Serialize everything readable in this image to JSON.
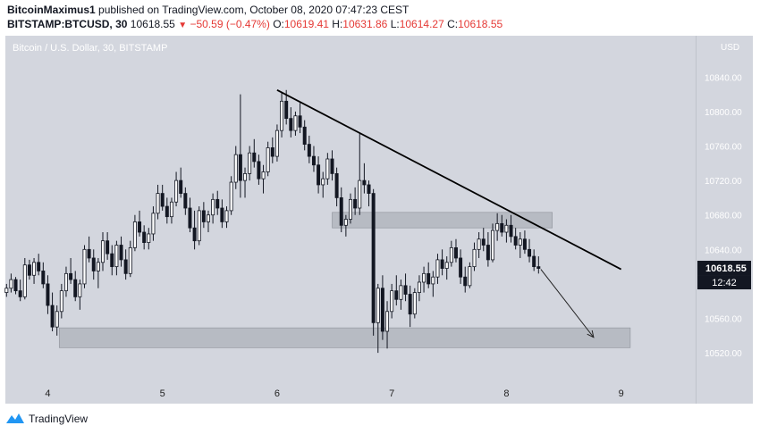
{
  "header": {
    "author": "BitcoinMaximus1",
    "published_text": "published on TradingView.com, October 08, 2020 07:47:23 CEST",
    "symbol": "BITSTAMP:BTCUSD, 30",
    "last": "10618.55",
    "change": "−50.59 (−0.47%)",
    "o_label": "O:",
    "o_val": "10619.41",
    "h_label": "H:",
    "h_val": "10631.86",
    "l_label": "L:",
    "l_val": "10614.27",
    "c_label": "C:",
    "c_val": "10618.55"
  },
  "chart_title": "Bitcoin / U.S. Dollar, 30, BITSTAMP",
  "footer": {
    "logo_text": "TradingView"
  },
  "colors": {
    "panel": "#d3d6de",
    "candle": "#131722",
    "zone": "#aeb2ba",
    "badge": "#131722"
  },
  "chart_data": {
    "type": "candlestick",
    "currency": "USD",
    "x": {
      "ticks": [
        "4",
        "5",
        "6",
        "7",
        "8",
        "9"
      ],
      "range_days": [
        3.63,
        9.65
      ]
    },
    "y": {
      "ticks": [
        "10520.00",
        "10560.00",
        "10600.00",
        "10640.00",
        "10680.00",
        "10720.00",
        "10760.00",
        "10800.00",
        "10840.00"
      ],
      "range": [
        10488,
        10888
      ]
    },
    "last_price_label": "10618.55",
    "countdown_label": "12:42",
    "ohlc": [
      [
        3.64,
        10590,
        10600,
        10585,
        10595
      ],
      [
        3.68,
        10595,
        10612,
        10590,
        10605
      ],
      [
        3.72,
        10605,
        10608,
        10588,
        10592
      ],
      [
        3.76,
        10592,
        10605,
        10580,
        10585
      ],
      [
        3.8,
        10585,
        10630,
        10582,
        10622
      ],
      [
        3.84,
        10622,
        10628,
        10605,
        10610
      ],
      [
        3.88,
        10610,
        10630,
        10600,
        10625
      ],
      [
        3.92,
        10625,
        10635,
        10610,
        10615
      ],
      [
        3.96,
        10615,
        10625,
        10595,
        10600
      ],
      [
        4.0,
        10600,
        10610,
        10565,
        10575
      ],
      [
        4.04,
        10575,
        10590,
        10545,
        10550
      ],
      [
        4.08,
        10550,
        10575,
        10540,
        10568
      ],
      [
        4.12,
        10568,
        10600,
        10560,
        10592
      ],
      [
        4.16,
        10592,
        10620,
        10585,
        10612
      ],
      [
        4.2,
        10612,
        10630,
        10600,
        10605
      ],
      [
        4.24,
        10605,
        10615,
        10580,
        10585
      ],
      [
        4.28,
        10585,
        10605,
        10570,
        10600
      ],
      [
        4.32,
        10600,
        10645,
        10595,
        10640
      ],
      [
        4.36,
        10640,
        10655,
        10625,
        10630
      ],
      [
        4.4,
        10630,
        10640,
        10605,
        10615
      ],
      [
        4.44,
        10615,
        10630,
        10595,
        10625
      ],
      [
        4.48,
        10625,
        10660,
        10615,
        10650
      ],
      [
        4.52,
        10650,
        10660,
        10628,
        10635
      ],
      [
        4.56,
        10635,
        10645,
        10610,
        10620
      ],
      [
        4.6,
        10620,
        10650,
        10610,
        10645
      ],
      [
        4.64,
        10645,
        10655,
        10620,
        10628
      ],
      [
        4.68,
        10628,
        10640,
        10605,
        10612
      ],
      [
        4.72,
        10612,
        10650,
        10608,
        10642
      ],
      [
        4.76,
        10642,
        10680,
        10638,
        10672
      ],
      [
        4.8,
        10672,
        10685,
        10655,
        10660
      ],
      [
        4.84,
        10660,
        10668,
        10640,
        10648
      ],
      [
        4.88,
        10648,
        10665,
        10640,
        10658
      ],
      [
        4.92,
        10658,
        10690,
        10650,
        10682
      ],
      [
        4.96,
        10682,
        10715,
        10675,
        10705
      ],
      [
        5.0,
        10705,
        10715,
        10685,
        10690
      ],
      [
        5.04,
        10690,
        10700,
        10670,
        10678
      ],
      [
        5.08,
        10678,
        10700,
        10670,
        10695
      ],
      [
        5.12,
        10695,
        10730,
        10690,
        10720
      ],
      [
        5.16,
        10720,
        10735,
        10700,
        10705
      ],
      [
        5.2,
        10705,
        10712,
        10680,
        10688
      ],
      [
        5.24,
        10688,
        10700,
        10660,
        10665
      ],
      [
        5.28,
        10665,
        10685,
        10640,
        10650
      ],
      [
        5.32,
        10650,
        10690,
        10645,
        10685
      ],
      [
        5.36,
        10685,
        10695,
        10665,
        10672
      ],
      [
        5.4,
        10672,
        10685,
        10660,
        10680
      ],
      [
        5.44,
        10680,
        10705,
        10670,
        10698
      ],
      [
        5.48,
        10698,
        10708,
        10680,
        10688
      ],
      [
        5.52,
        10688,
        10698,
        10665,
        10672
      ],
      [
        5.56,
        10672,
        10690,
        10665,
        10685
      ],
      [
        5.6,
        10685,
        10725,
        10680,
        10718
      ],
      [
        5.64,
        10718,
        10760,
        10710,
        10750
      ],
      [
        5.68,
        10750,
        10820,
        10700,
        10720
      ],
      [
        5.72,
        10720,
        10735,
        10700,
        10728
      ],
      [
        5.76,
        10728,
        10760,
        10720,
        10752
      ],
      [
        5.8,
        10752,
        10768,
        10735,
        10742
      ],
      [
        5.84,
        10742,
        10750,
        10715,
        10722
      ],
      [
        5.88,
        10722,
        10738,
        10705,
        10730
      ],
      [
        5.92,
        10730,
        10765,
        10725,
        10758
      ],
      [
        5.96,
        10758,
        10770,
        10740,
        10748
      ],
      [
        6.0,
        10748,
        10785,
        10742,
        10778
      ],
      [
        6.04,
        10778,
        10822,
        10770,
        10812
      ],
      [
        6.08,
        10812,
        10825,
        10785,
        10792
      ],
      [
        6.12,
        10792,
        10805,
        10770,
        10778
      ],
      [
        6.16,
        10778,
        10800,
        10772,
        10795
      ],
      [
        6.2,
        10795,
        10810,
        10775,
        10782
      ],
      [
        6.24,
        10782,
        10790,
        10755,
        10762
      ],
      [
        6.28,
        10762,
        10772,
        10740,
        10748
      ],
      [
        6.32,
        10748,
        10760,
        10730,
        10738
      ],
      [
        6.36,
        10738,
        10748,
        10705,
        10715
      ],
      [
        6.4,
        10715,
        10730,
        10700,
        10722
      ],
      [
        6.44,
        10722,
        10752,
        10715,
        10745
      ],
      [
        6.48,
        10745,
        10755,
        10720,
        10728
      ],
      [
        6.52,
        10728,
        10735,
        10690,
        10700
      ],
      [
        6.56,
        10700,
        10712,
        10660,
        10668
      ],
      [
        6.6,
        10668,
        10680,
        10655,
        10675
      ],
      [
        6.64,
        10675,
        10705,
        10670,
        10698
      ],
      [
        6.68,
        10698,
        10712,
        10680,
        10688
      ],
      [
        6.72,
        10688,
        10775,
        10680,
        10720
      ],
      [
        6.76,
        10720,
        10740,
        10705,
        10715
      ],
      [
        6.8,
        10715,
        10720,
        10690,
        10705
      ],
      [
        6.84,
        10705,
        10710,
        10540,
        10555
      ],
      [
        6.88,
        10555,
        10600,
        10520,
        10595
      ],
      [
        6.92,
        10595,
        10610,
        10535,
        10545
      ],
      [
        6.96,
        10545,
        10580,
        10525,
        10568
      ],
      [
        7.0,
        10568,
        10600,
        10560,
        10592
      ],
      [
        7.04,
        10592,
        10610,
        10575,
        10582
      ],
      [
        7.08,
        10582,
        10605,
        10570,
        10598
      ],
      [
        7.12,
        10598,
        10612,
        10580,
        10588
      ],
      [
        7.16,
        10588,
        10598,
        10550,
        10565
      ],
      [
        7.2,
        10565,
        10595,
        10560,
        10590
      ],
      [
        7.24,
        10590,
        10610,
        10580,
        10602
      ],
      [
        7.28,
        10602,
        10620,
        10590,
        10612
      ],
      [
        7.32,
        10612,
        10625,
        10595,
        10600
      ],
      [
        7.36,
        10600,
        10615,
        10585,
        10608
      ],
      [
        7.4,
        10608,
        10635,
        10600,
        10628
      ],
      [
        7.44,
        10628,
        10640,
        10610,
        10618
      ],
      [
        7.48,
        10618,
        10632,
        10605,
        10625
      ],
      [
        7.52,
        10625,
        10650,
        10620,
        10642
      ],
      [
        7.56,
        10642,
        10652,
        10625,
        10630
      ],
      [
        7.6,
        10630,
        10640,
        10600,
        10608
      ],
      [
        7.64,
        10608,
        10620,
        10590,
        10598
      ],
      [
        7.68,
        10598,
        10625,
        10595,
        10620
      ],
      [
        7.72,
        10620,
        10648,
        10615,
        10640
      ],
      [
        7.76,
        10640,
        10660,
        10630,
        10652
      ],
      [
        7.8,
        10652,
        10665,
        10638,
        10645
      ],
      [
        7.84,
        10645,
        10660,
        10620,
        10628
      ],
      [
        7.88,
        10628,
        10670,
        10625,
        10662
      ],
      [
        7.92,
        10662,
        10682,
        10650,
        10670
      ],
      [
        7.96,
        10670,
        10680,
        10655,
        10660
      ],
      [
        8.0,
        10660,
        10675,
        10648,
        10668
      ],
      [
        8.04,
        10668,
        10680,
        10648,
        10655
      ],
      [
        8.08,
        10655,
        10665,
        10640,
        10645
      ],
      [
        8.12,
        10645,
        10660,
        10630,
        10652
      ],
      [
        8.16,
        10652,
        10662,
        10635,
        10640
      ],
      [
        8.2,
        10640,
        10652,
        10625,
        10632
      ],
      [
        8.24,
        10632,
        10640,
        10615,
        10620
      ],
      [
        8.28,
        10620,
        10632,
        10612,
        10618
      ]
    ],
    "annotations": {
      "trendline": {
        "from": [
          6.0,
          10825
        ],
        "to": [
          9.0,
          10617
        ]
      },
      "zones": [
        {
          "x": [
            6.48,
            8.4
          ],
          "y": [
            10665,
            10683
          ]
        },
        {
          "x": [
            4.1,
            9.08
          ],
          "y": [
            10526,
            10549
          ]
        }
      ],
      "arrow": {
        "from": [
          8.3,
          10617
        ],
        "to": [
          8.76,
          10538
        ]
      }
    }
  }
}
